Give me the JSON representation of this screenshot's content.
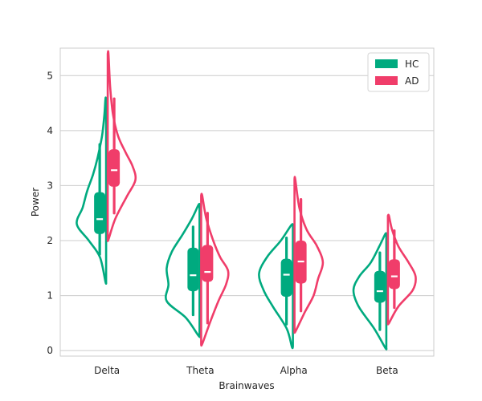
{
  "chart_data": {
    "type": "violin",
    "title": "",
    "xlabel": "Brainwaves",
    "ylabel": "Power",
    "categories": [
      "Delta",
      "Theta",
      "Alpha",
      "Beta"
    ],
    "ylim": [
      -0.1,
      5.5
    ],
    "yticks": [
      0,
      1,
      2,
      3,
      4,
      5
    ],
    "grid": "horizontal",
    "legend_position": "top-right",
    "series": [
      {
        "name": "HC",
        "color": "#00aa7f",
        "side": "left",
        "stats": [
          {
            "min": 1.75,
            "q1": 2.12,
            "median": 2.39,
            "q3": 2.88,
            "max": 3.75,
            "kde_min": 1.25,
            "kde_max": 4.58
          },
          {
            "min": 0.65,
            "q1": 1.08,
            "median": 1.37,
            "q3": 1.87,
            "max": 2.25,
            "kde_min": 0.27,
            "kde_max": 2.65
          },
          {
            "min": 0.48,
            "q1": 0.98,
            "median": 1.38,
            "q3": 1.67,
            "max": 2.05,
            "kde_min": 0.07,
            "kde_max": 2.28
          },
          {
            "min": 0.38,
            "q1": 0.87,
            "median": 1.08,
            "q3": 1.45,
            "max": 1.78,
            "kde_min": 0.05,
            "kde_max": 2.12
          }
        ],
        "profiles": [
          [
            [
              1.25,
              0.02
            ],
            [
              1.7,
              0.18
            ],
            [
              2.0,
              0.5
            ],
            [
              2.3,
              0.85
            ],
            [
              2.6,
              0.68
            ],
            [
              2.9,
              0.55
            ],
            [
              3.2,
              0.38
            ],
            [
              3.5,
              0.25
            ],
            [
              3.9,
              0.12
            ],
            [
              4.3,
              0.05
            ],
            [
              4.58,
              0.02
            ]
          ],
          [
            [
              0.27,
              0.03
            ],
            [
              0.6,
              0.4
            ],
            [
              0.9,
              0.95
            ],
            [
              1.2,
              0.9
            ],
            [
              1.5,
              0.95
            ],
            [
              1.8,
              0.8
            ],
            [
              2.1,
              0.5
            ],
            [
              2.4,
              0.22
            ],
            [
              2.65,
              0.03
            ]
          ],
          [
            [
              0.07,
              0.03
            ],
            [
              0.4,
              0.18
            ],
            [
              0.8,
              0.58
            ],
            [
              1.1,
              0.85
            ],
            [
              1.4,
              0.98
            ],
            [
              1.7,
              0.75
            ],
            [
              2.0,
              0.35
            ],
            [
              2.28,
              0.05
            ]
          ],
          [
            [
              0.05,
              0.03
            ],
            [
              0.4,
              0.35
            ],
            [
              0.8,
              0.8
            ],
            [
              1.1,
              0.95
            ],
            [
              1.35,
              0.78
            ],
            [
              1.6,
              0.45
            ],
            [
              1.9,
              0.2
            ],
            [
              2.12,
              0.03
            ]
          ]
        ]
      },
      {
        "name": "AD",
        "color": "#f03d6a",
        "side": "right",
        "stats": [
          {
            "min": 2.5,
            "q1": 2.98,
            "median": 3.28,
            "q3": 3.66,
            "max": 4.58,
            "kde_min": 2.02,
            "kde_max": 5.4
          },
          {
            "min": 0.5,
            "q1": 1.25,
            "median": 1.43,
            "q3": 1.92,
            "max": 2.5,
            "kde_min": 0.12,
            "kde_max": 2.82
          },
          {
            "min": 0.72,
            "q1": 1.22,
            "median": 1.62,
            "q3": 2.0,
            "max": 2.75,
            "kde_min": 0.35,
            "kde_max": 3.12
          },
          {
            "min": 0.78,
            "q1": 1.12,
            "median": 1.35,
            "q3": 1.66,
            "max": 2.18,
            "kde_min": 0.5,
            "kde_max": 2.45
          }
        ],
        "profiles": [
          [
            [
              2.02,
              0.02
            ],
            [
              2.4,
              0.22
            ],
            [
              2.8,
              0.55
            ],
            [
              3.1,
              0.8
            ],
            [
              3.35,
              0.72
            ],
            [
              3.6,
              0.52
            ],
            [
              3.9,
              0.3
            ],
            [
              4.3,
              0.15
            ],
            [
              4.8,
              0.07
            ],
            [
              5.4,
              0.02
            ]
          ],
          [
            [
              0.12,
              0.03
            ],
            [
              0.5,
              0.25
            ],
            [
              0.9,
              0.5
            ],
            [
              1.2,
              0.72
            ],
            [
              1.45,
              0.78
            ],
            [
              1.7,
              0.55
            ],
            [
              2.0,
              0.35
            ],
            [
              2.4,
              0.15
            ],
            [
              2.82,
              0.03
            ]
          ],
          [
            [
              0.35,
              0.03
            ],
            [
              0.7,
              0.3
            ],
            [
              1.0,
              0.55
            ],
            [
              1.3,
              0.68
            ],
            [
              1.6,
              0.82
            ],
            [
              1.9,
              0.65
            ],
            [
              2.2,
              0.35
            ],
            [
              2.6,
              0.14
            ],
            [
              3.12,
              0.02
            ]
          ],
          [
            [
              0.5,
              0.03
            ],
            [
              0.8,
              0.3
            ],
            [
              1.1,
              0.72
            ],
            [
              1.35,
              0.8
            ],
            [
              1.6,
              0.6
            ],
            [
              1.9,
              0.3
            ],
            [
              2.2,
              0.12
            ],
            [
              2.45,
              0.03
            ]
          ]
        ]
      }
    ]
  }
}
